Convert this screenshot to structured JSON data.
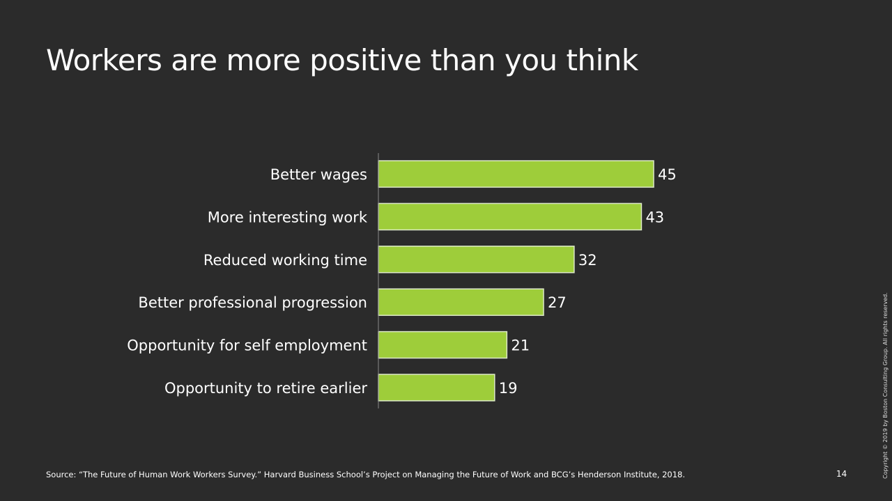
{
  "title": "Workers are more positive than you think",
  "chart_data": {
    "type": "bar",
    "orientation": "horizontal",
    "categories": [
      "Better wages",
      "More interesting work",
      "Reduced working time",
      "Better professional progression",
      "Opportunity for self employment",
      "Opportunity to retire earlier"
    ],
    "values": [
      45,
      43,
      32,
      27,
      21,
      19
    ],
    "title": "",
    "xlabel": "",
    "ylabel": "",
    "xlim": [
      0,
      45
    ],
    "grid": false,
    "colors": {
      "bar": "#9ecd3a",
      "bar_border": "#dde9c8",
      "axis": "#888888"
    }
  },
  "footer": {
    "source": "Source: “The Future of Human Work Workers Survey.” Harvard Business School’s Project on Managing the Future of Work and BCG’s Henderson Institute, 2018.",
    "page_number": "14",
    "copyright": "Copyright © 2019 by Boston Consulting Group. All rights reserved."
  }
}
